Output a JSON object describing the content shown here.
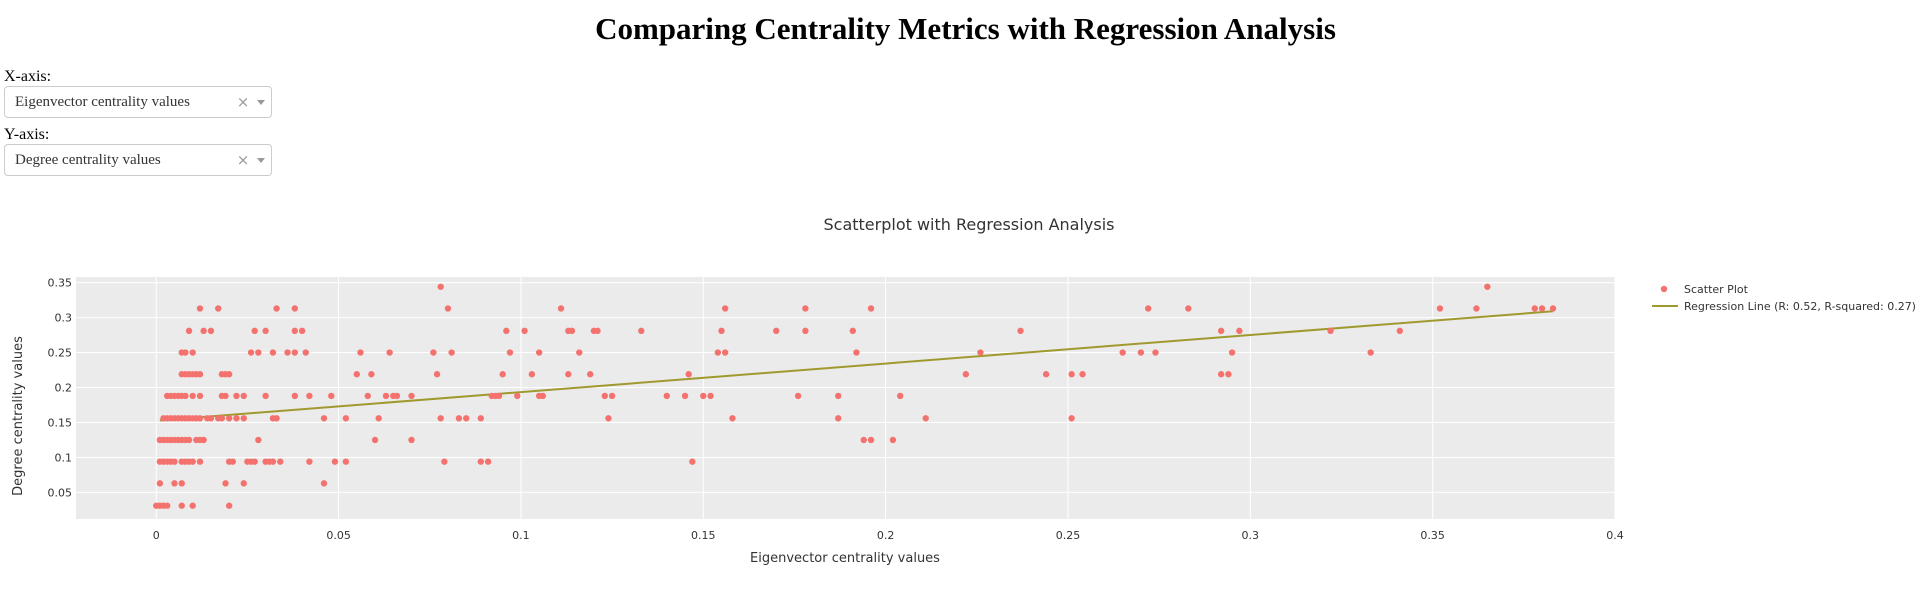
{
  "page": {
    "title": "Comparing Centrality Metrics with Regression Analysis"
  },
  "controls": {
    "x_label": "X-axis:",
    "x_value": "Eigenvector centrality values",
    "y_label": "Y-axis:",
    "y_value": "Degree centrality values",
    "clear_glyph": "×"
  },
  "colors": {
    "scatter": "#f4726e",
    "regression": "#a09a2e",
    "plot_bg": "#ebebeb",
    "grid": "#ffffff"
  },
  "chart_data": {
    "type": "scatter",
    "title": "Scatterplot with Regression Analysis",
    "xlabel": "Eigenvector centrality values",
    "ylabel": "Degree centrality values",
    "xlim": [
      -0.022,
      0.4
    ],
    "ylim": [
      0.012,
      0.358
    ],
    "x_ticks": [
      0,
      0.05,
      0.1,
      0.15,
      0.2,
      0.25,
      0.3,
      0.35,
      0.4
    ],
    "x_tick_labels": [
      "0",
      "0.05",
      "0.1",
      "0.15",
      "0.2",
      "0.25",
      "0.3",
      "0.35",
      "0.4"
    ],
    "y_ticks": [
      0.05,
      0.1,
      0.15,
      0.2,
      0.25,
      0.3,
      0.35
    ],
    "y_tick_labels": [
      "0.05",
      "0.1",
      "0.15",
      "0.2",
      "0.25",
      "0.3",
      "0.35"
    ],
    "grid": true,
    "legend_position": "top-right",
    "series": [
      {
        "name": "Scatter Plot",
        "mode": "markers",
        "points": [
          [
            0.0,
            0.031
          ],
          [
            0.001,
            0.031
          ],
          [
            0.002,
            0.031
          ],
          [
            0.003,
            0.031
          ],
          [
            0.007,
            0.031
          ],
          [
            0.01,
            0.031
          ],
          [
            0.02,
            0.031
          ],
          [
            0.001,
            0.063
          ],
          [
            0.005,
            0.063
          ],
          [
            0.007,
            0.063
          ],
          [
            0.019,
            0.063
          ],
          [
            0.024,
            0.063
          ],
          [
            0.046,
            0.063
          ],
          [
            0.001,
            0.094
          ],
          [
            0.002,
            0.094
          ],
          [
            0.003,
            0.094
          ],
          [
            0.004,
            0.094
          ],
          [
            0.005,
            0.094
          ],
          [
            0.007,
            0.094
          ],
          [
            0.008,
            0.094
          ],
          [
            0.009,
            0.094
          ],
          [
            0.01,
            0.094
          ],
          [
            0.012,
            0.094
          ],
          [
            0.02,
            0.094
          ],
          [
            0.021,
            0.094
          ],
          [
            0.025,
            0.094
          ],
          [
            0.026,
            0.094
          ],
          [
            0.027,
            0.094
          ],
          [
            0.03,
            0.094
          ],
          [
            0.031,
            0.094
          ],
          [
            0.032,
            0.094
          ],
          [
            0.034,
            0.094
          ],
          [
            0.042,
            0.094
          ],
          [
            0.049,
            0.094
          ],
          [
            0.052,
            0.094
          ],
          [
            0.079,
            0.094
          ],
          [
            0.089,
            0.094
          ],
          [
            0.091,
            0.094
          ],
          [
            0.147,
            0.094
          ],
          [
            0.001,
            0.125
          ],
          [
            0.002,
            0.125
          ],
          [
            0.003,
            0.125
          ],
          [
            0.004,
            0.125
          ],
          [
            0.005,
            0.125
          ],
          [
            0.006,
            0.125
          ],
          [
            0.007,
            0.125
          ],
          [
            0.008,
            0.125
          ],
          [
            0.009,
            0.125
          ],
          [
            0.011,
            0.125
          ],
          [
            0.012,
            0.125
          ],
          [
            0.013,
            0.125
          ],
          [
            0.028,
            0.125
          ],
          [
            0.06,
            0.125
          ],
          [
            0.07,
            0.125
          ],
          [
            0.194,
            0.125
          ],
          [
            0.196,
            0.125
          ],
          [
            0.202,
            0.125
          ],
          [
            0.002,
            0.156
          ],
          [
            0.003,
            0.156
          ],
          [
            0.004,
            0.156
          ],
          [
            0.005,
            0.156
          ],
          [
            0.006,
            0.156
          ],
          [
            0.007,
            0.156
          ],
          [
            0.008,
            0.156
          ],
          [
            0.009,
            0.156
          ],
          [
            0.01,
            0.156
          ],
          [
            0.011,
            0.156
          ],
          [
            0.012,
            0.156
          ],
          [
            0.014,
            0.156
          ],
          [
            0.015,
            0.156
          ],
          [
            0.017,
            0.156
          ],
          [
            0.018,
            0.156
          ],
          [
            0.02,
            0.156
          ],
          [
            0.022,
            0.156
          ],
          [
            0.024,
            0.156
          ],
          [
            0.032,
            0.156
          ],
          [
            0.033,
            0.156
          ],
          [
            0.046,
            0.156
          ],
          [
            0.052,
            0.156
          ],
          [
            0.061,
            0.156
          ],
          [
            0.078,
            0.156
          ],
          [
            0.083,
            0.156
          ],
          [
            0.085,
            0.156
          ],
          [
            0.089,
            0.156
          ],
          [
            0.124,
            0.156
          ],
          [
            0.158,
            0.156
          ],
          [
            0.187,
            0.156
          ],
          [
            0.211,
            0.156
          ],
          [
            0.251,
            0.156
          ],
          [
            0.003,
            0.188
          ],
          [
            0.004,
            0.188
          ],
          [
            0.005,
            0.188
          ],
          [
            0.006,
            0.188
          ],
          [
            0.007,
            0.188
          ],
          [
            0.008,
            0.188
          ],
          [
            0.01,
            0.188
          ],
          [
            0.012,
            0.188
          ],
          [
            0.018,
            0.188
          ],
          [
            0.019,
            0.188
          ],
          [
            0.022,
            0.188
          ],
          [
            0.024,
            0.188
          ],
          [
            0.03,
            0.188
          ],
          [
            0.038,
            0.188
          ],
          [
            0.042,
            0.188
          ],
          [
            0.048,
            0.188
          ],
          [
            0.058,
            0.188
          ],
          [
            0.063,
            0.188
          ],
          [
            0.065,
            0.188
          ],
          [
            0.066,
            0.188
          ],
          [
            0.07,
            0.188
          ],
          [
            0.092,
            0.188
          ],
          [
            0.093,
            0.188
          ],
          [
            0.094,
            0.188
          ],
          [
            0.099,
            0.188
          ],
          [
            0.105,
            0.188
          ],
          [
            0.106,
            0.188
          ],
          [
            0.123,
            0.188
          ],
          [
            0.125,
            0.188
          ],
          [
            0.14,
            0.188
          ],
          [
            0.145,
            0.188
          ],
          [
            0.15,
            0.188
          ],
          [
            0.152,
            0.188
          ],
          [
            0.176,
            0.188
          ],
          [
            0.187,
            0.188
          ],
          [
            0.204,
            0.188
          ],
          [
            0.007,
            0.219
          ],
          [
            0.008,
            0.219
          ],
          [
            0.009,
            0.219
          ],
          [
            0.01,
            0.219
          ],
          [
            0.011,
            0.219
          ],
          [
            0.012,
            0.219
          ],
          [
            0.018,
            0.219
          ],
          [
            0.019,
            0.219
          ],
          [
            0.02,
            0.219
          ],
          [
            0.055,
            0.219
          ],
          [
            0.059,
            0.219
          ],
          [
            0.077,
            0.219
          ],
          [
            0.095,
            0.219
          ],
          [
            0.103,
            0.219
          ],
          [
            0.113,
            0.219
          ],
          [
            0.119,
            0.219
          ],
          [
            0.146,
            0.219
          ],
          [
            0.222,
            0.219
          ],
          [
            0.244,
            0.219
          ],
          [
            0.251,
            0.219
          ],
          [
            0.254,
            0.219
          ],
          [
            0.292,
            0.219
          ],
          [
            0.294,
            0.219
          ],
          [
            0.007,
            0.25
          ],
          [
            0.008,
            0.25
          ],
          [
            0.01,
            0.25
          ],
          [
            0.026,
            0.25
          ],
          [
            0.028,
            0.25
          ],
          [
            0.032,
            0.25
          ],
          [
            0.036,
            0.25
          ],
          [
            0.038,
            0.25
          ],
          [
            0.041,
            0.25
          ],
          [
            0.056,
            0.25
          ],
          [
            0.064,
            0.25
          ],
          [
            0.076,
            0.25
          ],
          [
            0.081,
            0.25
          ],
          [
            0.097,
            0.25
          ],
          [
            0.105,
            0.25
          ],
          [
            0.116,
            0.25
          ],
          [
            0.154,
            0.25
          ],
          [
            0.156,
            0.25
          ],
          [
            0.192,
            0.25
          ],
          [
            0.226,
            0.25
          ],
          [
            0.265,
            0.25
          ],
          [
            0.27,
            0.25
          ],
          [
            0.274,
            0.25
          ],
          [
            0.295,
            0.25
          ],
          [
            0.333,
            0.25
          ],
          [
            0.009,
            0.281
          ],
          [
            0.013,
            0.281
          ],
          [
            0.015,
            0.281
          ],
          [
            0.027,
            0.281
          ],
          [
            0.03,
            0.281
          ],
          [
            0.038,
            0.281
          ],
          [
            0.04,
            0.281
          ],
          [
            0.096,
            0.281
          ],
          [
            0.101,
            0.281
          ],
          [
            0.113,
            0.281
          ],
          [
            0.114,
            0.281
          ],
          [
            0.12,
            0.281
          ],
          [
            0.121,
            0.281
          ],
          [
            0.133,
            0.281
          ],
          [
            0.155,
            0.281
          ],
          [
            0.17,
            0.281
          ],
          [
            0.178,
            0.281
          ],
          [
            0.191,
            0.281
          ],
          [
            0.237,
            0.281
          ],
          [
            0.292,
            0.281
          ],
          [
            0.297,
            0.281
          ],
          [
            0.322,
            0.281
          ],
          [
            0.341,
            0.281
          ],
          [
            0.012,
            0.313
          ],
          [
            0.017,
            0.313
          ],
          [
            0.033,
            0.313
          ],
          [
            0.038,
            0.313
          ],
          [
            0.08,
            0.313
          ],
          [
            0.111,
            0.313
          ],
          [
            0.156,
            0.313
          ],
          [
            0.178,
            0.313
          ],
          [
            0.196,
            0.313
          ],
          [
            0.272,
            0.313
          ],
          [
            0.283,
            0.313
          ],
          [
            0.352,
            0.313
          ],
          [
            0.362,
            0.313
          ],
          [
            0.378,
            0.313
          ],
          [
            0.38,
            0.313
          ],
          [
            0.383,
            0.313
          ],
          [
            0.078,
            0.344
          ],
          [
            0.365,
            0.344
          ]
        ]
      },
      {
        "name": "Regression Line (R: 0.52, R-squared: 0.27)",
        "mode": "lines",
        "points": [
          [
            0.001,
            0.153
          ],
          [
            0.383,
            0.309
          ]
        ]
      }
    ]
  }
}
